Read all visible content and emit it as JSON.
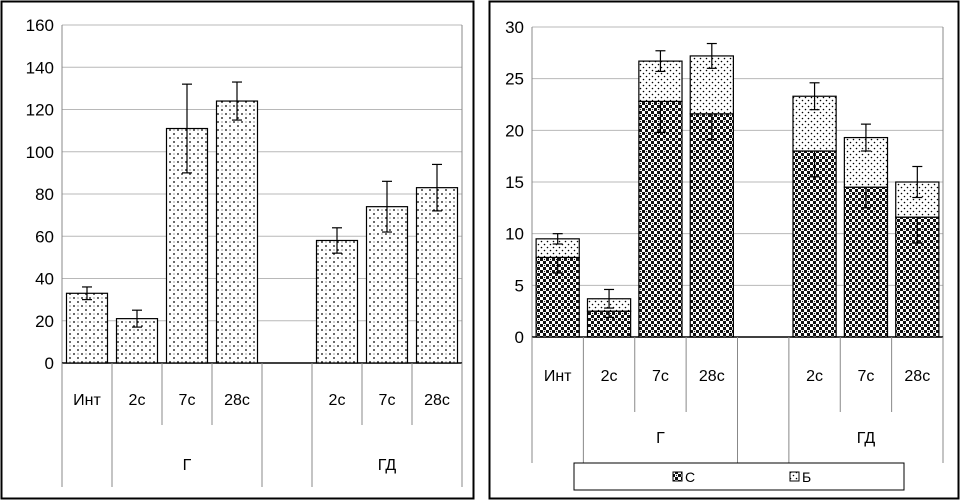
{
  "chart_data": [
    {
      "type": "bar",
      "title": "",
      "xlabel": "",
      "ylabel": "",
      "ylim": [
        0,
        160
      ],
      "yticks": [
        "0",
        "20",
        "40",
        "60",
        "80",
        "100",
        "120",
        "140",
        "160"
      ],
      "groups": [
        {
          "label": "",
          "categories": [
            "Инт"
          ]
        },
        {
          "label": "Г",
          "categories": [
            "2с",
            "7с",
            "28с"
          ]
        },
        {
          "label": "ГД",
          "categories": [
            "2с",
            "7с",
            "28с"
          ]
        }
      ],
      "series": [
        {
          "name": "",
          "values": [
            33,
            21,
            111,
            124,
            null,
            58,
            74,
            83
          ],
          "errors": [
            3,
            4,
            21,
            9,
            null,
            6,
            12,
            11
          ]
        }
      ]
    },
    {
      "type": "bar",
      "stacked": true,
      "title": "",
      "xlabel": "",
      "ylabel": "",
      "ylim": [
        0,
        30
      ],
      "yticks": [
        "0",
        "5",
        "10",
        "15",
        "20",
        "25",
        "30"
      ],
      "groups": [
        {
          "label": "",
          "categories": [
            "Инт"
          ]
        },
        {
          "label": "Г",
          "categories": [
            "2с",
            "7с",
            "28с"
          ]
        },
        {
          "label": "ГД",
          "categories": [
            "2с",
            "7с",
            "28с"
          ]
        }
      ],
      "series": [
        {
          "name": "С",
          "values": [
            7.7,
            2.5,
            22.8,
            21.6,
            null,
            18.0,
            14.5,
            11.6
          ],
          "errors": [
            1.5,
            0.6,
            3.0,
            2.5,
            null,
            2.5,
            2.0,
            2.5
          ]
        },
        {
          "name": "Б",
          "values": [
            1.8,
            1.2,
            3.9,
            5.6,
            null,
            5.3,
            4.8,
            3.4
          ],
          "errors": [
            0.5,
            0.9,
            1.0,
            1.2,
            null,
            1.3,
            1.3,
            1.5
          ]
        }
      ],
      "legend": {
        "position": "bottom",
        "entries": [
          "С",
          "Б"
        ]
      }
    }
  ]
}
